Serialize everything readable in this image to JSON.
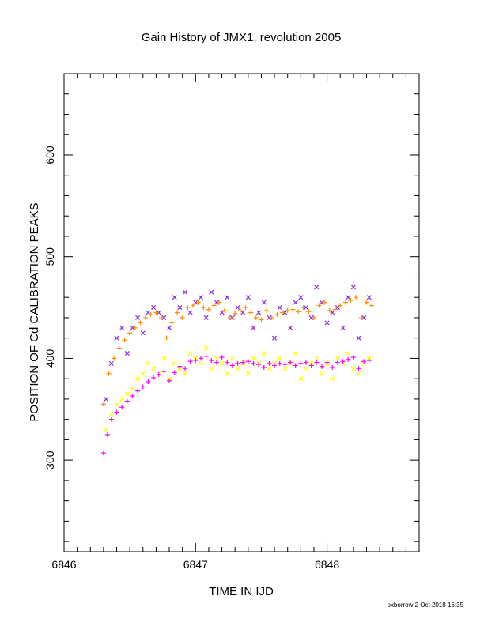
{
  "chart_data": {
    "type": "scatter",
    "title": "Gain History of JMX1, revolution 2005",
    "xlabel": "TIME IN IJD",
    "ylabel": "POSITION OF Cd CALIBRATION PEAKS",
    "xlim": [
      6846,
      6848.7
    ],
    "ylim": [
      210,
      680
    ],
    "x_ticks": [
      6846,
      6847,
      6848
    ],
    "x_tick_labels": [
      "6846",
      "6847",
      "6848"
    ],
    "y_ticks": [
      300,
      400,
      500,
      600
    ],
    "y_tick_labels": [
      "300",
      "400",
      "500",
      "600"
    ],
    "grid": false,
    "legend": "none",
    "series": [
      {
        "marker": "x",
        "color": "#8a2be2",
        "x": [
          6846.32,
          6846.36,
          6846.4,
          6846.44,
          6846.48,
          6846.52,
          6846.56,
          6846.6,
          6846.64,
          6846.68,
          6846.72,
          6846.76,
          6846.8,
          6846.84,
          6846.88,
          6846.92,
          6846.96,
          6847.0,
          6847.04,
          6847.08,
          6847.12,
          6847.16,
          6847.2,
          6847.24,
          6847.28,
          6847.32,
          6847.36,
          6847.4,
          6847.44,
          6847.48,
          6847.52,
          6847.56,
          6847.6,
          6847.64,
          6847.68,
          6847.72,
          6847.76,
          6847.8,
          6847.84,
          6847.88,
          6847.92,
          6847.96,
          6848.0,
          6848.04,
          6848.08,
          6848.12,
          6848.16,
          6848.2,
          6848.24,
          6848.28,
          6848.32
        ],
        "y": [
          360,
          395,
          420,
          430,
          405,
          430,
          440,
          425,
          445,
          450,
          445,
          440,
          430,
          460,
          450,
          465,
          445,
          455,
          460,
          440,
          465,
          455,
          445,
          460,
          440,
          450,
          445,
          460,
          430,
          445,
          455,
          440,
          420,
          450,
          445,
          430,
          455,
          460,
          450,
          440,
          470,
          455,
          435,
          445,
          450,
          430,
          460,
          470,
          420,
          440,
          460
        ]
      },
      {
        "marker": "+",
        "color": "#ff8c00",
        "x": [
          6846.3,
          6846.34,
          6846.38,
          6846.42,
          6846.46,
          6846.5,
          6846.54,
          6846.58,
          6846.62,
          6846.66,
          6846.7,
          6846.74,
          6846.78,
          6846.82,
          6846.86,
          6846.9,
          6846.94,
          6846.98,
          6847.02,
          6847.06,
          6847.1,
          6847.14,
          6847.18,
          6847.22,
          6847.26,
          6847.3,
          6847.34,
          6847.38,
          6847.42,
          6847.46,
          6847.5,
          6847.54,
          6847.58,
          6847.62,
          6847.66,
          6847.7,
          6847.74,
          6847.78,
          6847.82,
          6847.86,
          6847.9,
          6847.94,
          6847.98,
          6848.02,
          6848.06,
          6848.1,
          6848.14,
          6848.18,
          6848.22,
          6848.26,
          6848.3,
          6848.34
        ],
        "y": [
          355,
          385,
          400,
          410,
          418,
          425,
          430,
          435,
          440,
          443,
          445,
          440,
          420,
          435,
          445,
          440,
          450,
          452,
          455,
          450,
          448,
          452,
          455,
          447,
          440,
          444,
          447,
          450,
          445,
          440,
          438,
          447,
          440,
          443,
          445,
          447,
          448,
          446,
          450,
          446,
          440,
          452,
          455,
          447,
          448,
          452,
          455,
          457,
          460,
          440,
          455,
          452
        ]
      },
      {
        "marker": "x",
        "color": "#ffff00",
        "x": [
          6846.32,
          6846.36,
          6846.4,
          6846.44,
          6846.48,
          6846.52,
          6846.56,
          6846.6,
          6846.64,
          6846.68,
          6846.72,
          6846.76,
          6846.8,
          6846.84,
          6846.88,
          6846.92,
          6846.96,
          6847.0,
          6847.04,
          6847.08,
          6847.12,
          6847.16,
          6847.2,
          6847.24,
          6847.28,
          6847.32,
          6847.36,
          6847.4,
          6847.44,
          6847.48,
          6847.52,
          6847.56,
          6847.6,
          6847.64,
          6847.68,
          6847.72,
          6847.76,
          6847.8,
          6847.84,
          6847.88,
          6847.92,
          6847.96,
          6848.0,
          6848.04,
          6848.08,
          6848.12,
          6848.16,
          6848.2,
          6848.24,
          6848.28,
          6848.32
        ],
        "y": [
          330,
          345,
          355,
          360,
          365,
          370,
          380,
          385,
          395,
          390,
          385,
          400,
          380,
          395,
          390,
          385,
          405,
          400,
          395,
          410,
          390,
          400,
          395,
          385,
          400,
          390,
          395,
          385,
          400,
          395,
          405,
          390,
          395,
          400,
          390,
          395,
          405,
          380,
          390,
          395,
          400,
          385,
          395,
          380,
          400,
          395,
          405,
          390,
          385,
          395,
          400
        ]
      },
      {
        "marker": "+",
        "color": "#ff00ff",
        "x": [
          6846.3,
          6846.33,
          6846.36,
          6846.4,
          6846.44,
          6846.48,
          6846.52,
          6846.56,
          6846.6,
          6846.64,
          6846.68,
          6846.72,
          6846.76,
          6846.8,
          6846.84,
          6846.88,
          6846.92,
          6846.96,
          6847.0,
          6847.04,
          6847.08,
          6847.12,
          6847.16,
          6847.2,
          6847.24,
          6847.28,
          6847.32,
          6847.36,
          6847.4,
          6847.44,
          6847.48,
          6847.52,
          6847.56,
          6847.6,
          6847.64,
          6847.68,
          6847.72,
          6847.76,
          6847.8,
          6847.84,
          6847.88,
          6847.92,
          6847.96,
          6848.0,
          6848.04,
          6848.08,
          6848.12,
          6848.16,
          6848.2,
          6848.24,
          6848.28,
          6848.32
        ],
        "y": [
          307,
          325,
          340,
          347,
          352,
          358,
          363,
          368,
          372,
          377,
          381,
          384,
          387,
          378,
          386,
          392,
          390,
          397,
          398,
          400,
          402,
          398,
          396,
          401,
          396,
          393,
          395,
          396,
          397,
          395,
          394,
          391,
          395,
          393,
          395,
          394,
          396,
          393,
          395,
          396,
          393,
          396,
          392,
          396,
          391,
          396,
          397,
          399,
          401,
          390,
          397,
          398
        ]
      }
    ]
  },
  "footer": {
    "stamp": "oxborrow  2 Oct 2018 16:35"
  }
}
